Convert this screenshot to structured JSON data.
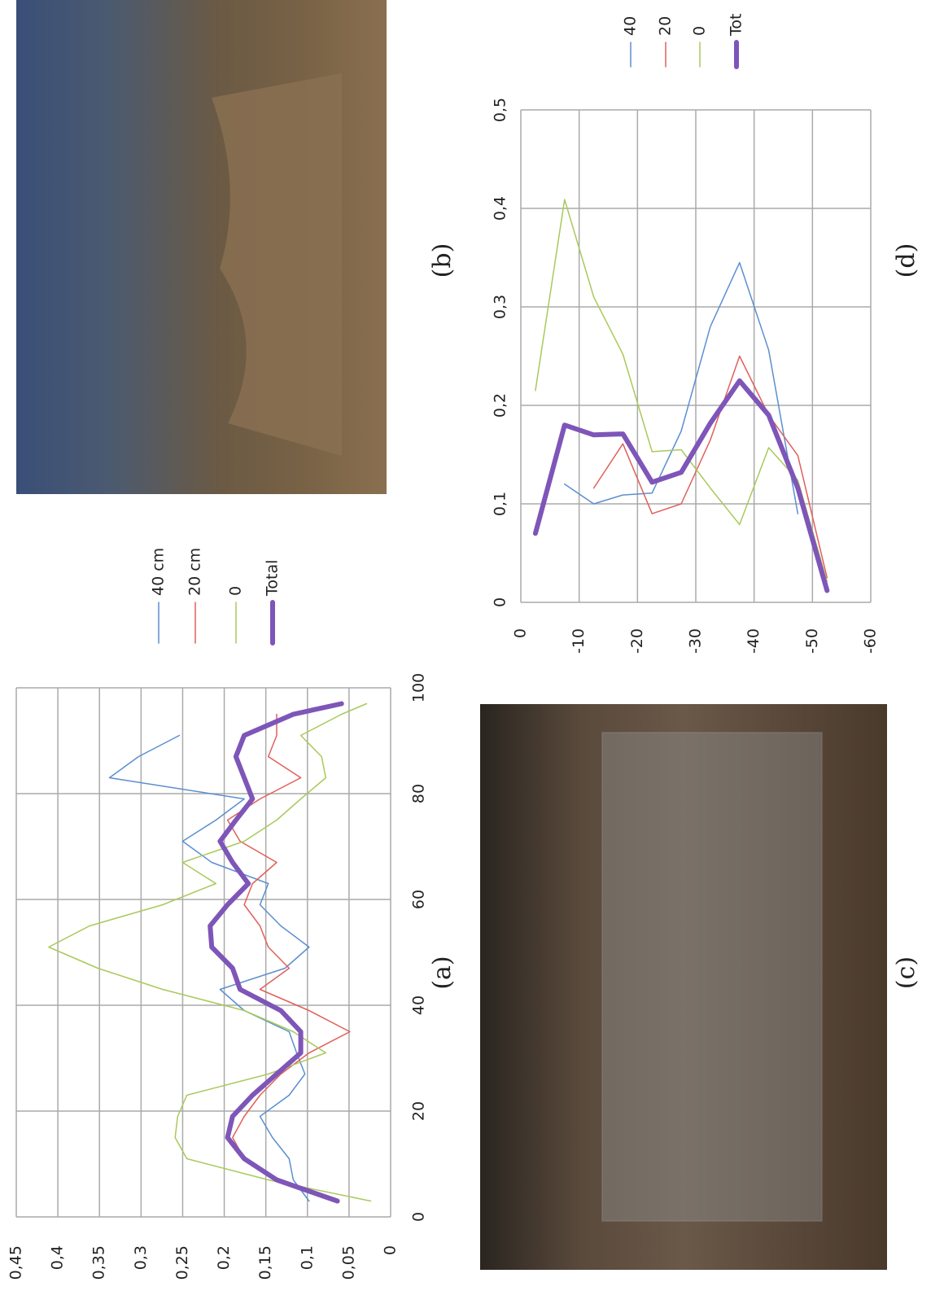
{
  "chart_data": [
    {
      "type": "line",
      "caption": "(a)",
      "x": [
        3,
        7,
        11,
        15,
        19,
        23,
        27,
        31,
        35,
        39,
        43,
        47,
        51,
        55,
        59,
        63,
        67,
        71,
        75,
        79,
        83,
        87,
        91,
        95,
        97
      ],
      "xlim": [
        0,
        100
      ],
      "xticks": [
        0,
        20,
        40,
        60,
        80,
        100
      ],
      "ylim": [
        0,
        0.45
      ],
      "yticks": [
        0,
        {
          "value": 0.05,
          "label": "0,05"
        },
        {
          "value": 0.1,
          "label": "0,1"
        },
        {
          "value": 0.15,
          "label": "0,15"
        },
        {
          "value": 0.2,
          "label": "0,2"
        },
        {
          "value": 0.25,
          "label": "0,25"
        },
        {
          "value": 0.3,
          "label": "0,3"
        },
        {
          "value": 0.35,
          "label": "0,35"
        },
        {
          "value": 0.4,
          "label": "0,4"
        },
        {
          "value": 0.45,
          "label": "0,45"
        }
      ],
      "grid": true,
      "series": [
        {
          "name": "40 cm",
          "color": "#5b8fd0",
          "width": 1.5,
          "values": [
            0.098,
            0.117,
            0.122,
            0.142,
            0.157,
            0.122,
            0.103,
            0.113,
            0.122,
            0.176,
            0.205,
            0.127,
            0.098,
            0.132,
            0.157,
            0.147,
            0.215,
            0.25,
            0.21,
            0.176,
            0.338,
            0.303,
            0.254,
            null,
            null
          ]
        },
        {
          "name": "20 cm",
          "color": "#e0605a",
          "width": 1.5,
          "values": [
            null,
            0.137,
            0.176,
            0.19,
            0.176,
            0.157,
            0.132,
            0.098,
            0.049,
            0.098,
            0.157,
            0.122,
            0.147,
            0.157,
            0.176,
            0.166,
            0.137,
            0.181,
            0.196,
            0.157,
            0.108,
            0.147,
            0.137,
            0.137,
            null
          ]
        },
        {
          "name": "0",
          "color": "#a9c95b",
          "width": 1.5,
          "values": [
            0.024,
            0.147,
            0.245,
            0.259,
            0.256,
            0.245,
            0.147,
            0.078,
            0.117,
            0.176,
            0.274,
            0.352,
            0.411,
            0.362,
            0.274,
            0.21,
            0.25,
            0.176,
            0.137,
            0.108,
            0.078,
            0.083,
            0.108,
            0.059,
            0.029
          ]
        },
        {
          "name": "Total",
          "color": "#7e55b8",
          "width": 6,
          "values": [
            0.064,
            0.137,
            0.176,
            0.196,
            0.19,
            0.166,
            0.137,
            0.108,
            0.108,
            0.132,
            0.181,
            0.19,
            0.215,
            0.217,
            0.196,
            0.171,
            0.19,
            0.205,
            0.186,
            0.166,
            0.176,
            0.186,
            0.176,
            0.117,
            0.059
          ]
        }
      ]
    },
    {
      "type": "line",
      "caption": "(d)",
      "x": [
        -2.5,
        -7.5,
        -12.5,
        -17.5,
        -22.5,
        -27.5,
        -32.5,
        -37.5,
        -42.5,
        -47.5,
        -52.5
      ],
      "xlim": [
        0,
        -60
      ],
      "xticks": [
        0,
        -10,
        -20,
        -30,
        -40,
        -50,
        -60
      ],
      "ylim": [
        0,
        0.5
      ],
      "yticks": [
        0,
        {
          "value": 0.1,
          "label": "0,1"
        },
        {
          "value": 0.2,
          "label": "0,2"
        },
        {
          "value": 0.3,
          "label": "0,3"
        },
        {
          "value": 0.4,
          "label": "0,4"
        },
        {
          "value": 0.5,
          "label": "0,5"
        }
      ],
      "grid": true,
      "series": [
        {
          "name": "40",
          "color": "#5b8fd0",
          "width": 1.5,
          "values": [
            null,
            0.12,
            0.1,
            0.109,
            0.111,
            0.174,
            0.28,
            0.345,
            0.256,
            0.09,
            null
          ]
        },
        {
          "name": "20",
          "color": "#e0605a",
          "width": 1.5,
          "values": [
            null,
            null,
            0.116,
            0.161,
            0.09,
            0.1,
            0.165,
            0.25,
            0.19,
            0.149,
            0.025
          ]
        },
        {
          "name": "0",
          "color": "#a9c95b",
          "width": 1.5,
          "values": [
            0.215,
            0.409,
            0.31,
            0.252,
            0.153,
            0.155,
            0.116,
            0.079,
            0.157,
            0.124,
            0.021
          ]
        },
        {
          "name": "Tot",
          "color": "#7e55b8",
          "width": 6,
          "values": [
            0.07,
            0.18,
            0.17,
            0.171,
            0.122,
            0.132,
            0.182,
            0.225,
            0.19,
            0.116,
            0.012
          ]
        }
      ]
    }
  ],
  "photos": {
    "b": "(b)",
    "c": "(c)"
  }
}
